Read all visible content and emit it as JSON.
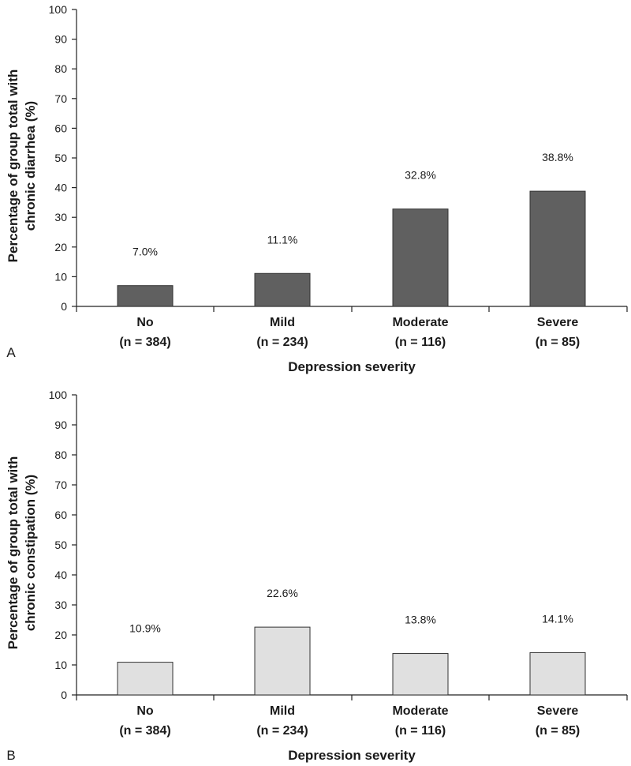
{
  "chart_data": [
    {
      "type": "bar",
      "panel_label": "A",
      "categories": [
        "No",
        "Mild",
        "Moderate",
        "Severe"
      ],
      "category_n": [
        "(n = 384)",
        "(n = 234)",
        "(n = 116)",
        "(n = 85)"
      ],
      "values": [
        7.0,
        11.1,
        32.8,
        38.8
      ],
      "data_labels": [
        "7.0%",
        "11.1%",
        "32.8%",
        "38.8%"
      ],
      "xlabel": "Depression severity",
      "ylabel_lines": [
        "Percentage of group total with",
        "chronic diarrhea (%)"
      ],
      "ylim": [
        0,
        100
      ],
      "yticks": [
        "0",
        "10",
        "20",
        "30",
        "40",
        "50",
        "60",
        "70",
        "80",
        "90",
        "100"
      ],
      "bar_color": "#606060",
      "grid": false
    },
    {
      "type": "bar",
      "panel_label": "B",
      "categories": [
        "No",
        "Mild",
        "Moderate",
        "Severe"
      ],
      "category_n": [
        "(n = 384)",
        "(n = 234)",
        "(n = 116)",
        "(n = 85)"
      ],
      "values": [
        10.9,
        22.6,
        13.8,
        14.1
      ],
      "data_labels": [
        "10.9%",
        "22.6%",
        "13.8%",
        "14.1%"
      ],
      "xlabel": "Depression severity",
      "ylabel_lines": [
        "Percentage of group total with",
        "chronic constipation (%)"
      ],
      "ylim": [
        0,
        100
      ],
      "yticks": [
        "0",
        "10",
        "20",
        "30",
        "40",
        "50",
        "60",
        "70",
        "80",
        "90",
        "100"
      ],
      "bar_color": "#e0e0e0",
      "grid": false
    }
  ]
}
